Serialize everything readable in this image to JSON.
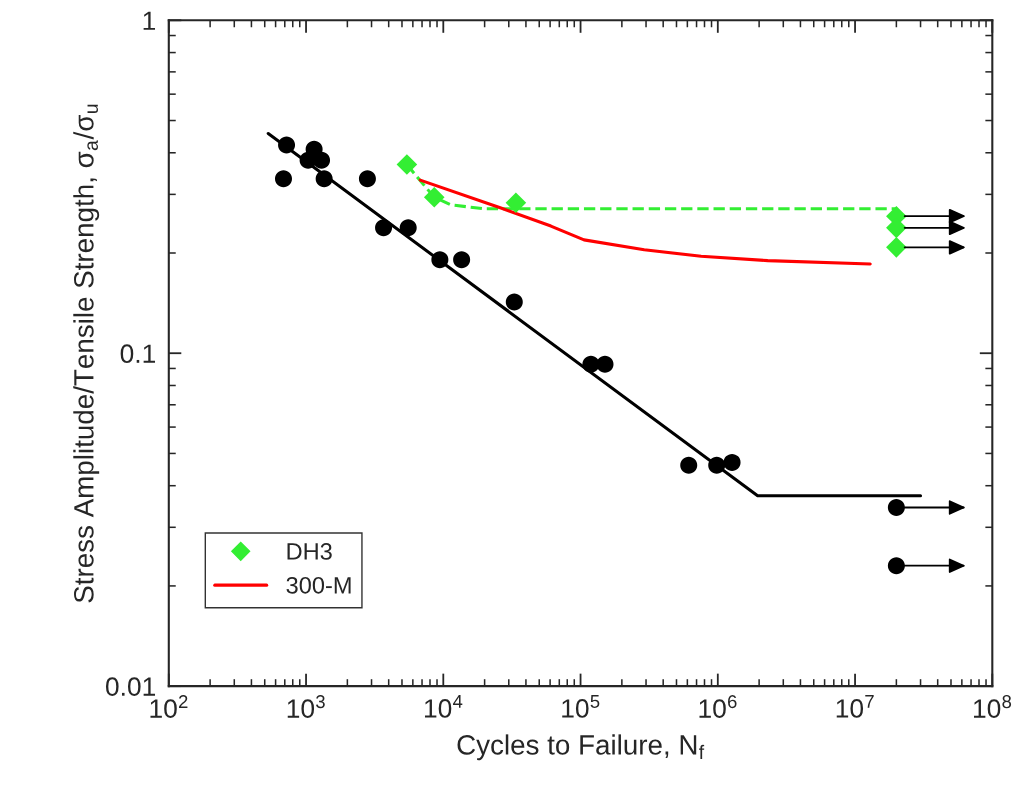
{
  "chart_data": {
    "type": "scatter",
    "xlabel": "Cycles to Failure, N$_{f}$",
    "ylabel": "Stress Amplitude/Tensile Strength, σ$_{a}$/σ$_{u}$",
    "log": "xy",
    "xlim": [
      100,
      100000000
    ],
    "xticks": [
      {
        "value": 100,
        "label": "10$^{2}$"
      },
      {
        "value": 1000,
        "label": "10$^{3}$"
      },
      {
        "value": 10000,
        "label": "10$^{4}$"
      },
      {
        "value": 100000,
        "label": "10$^{5}$"
      },
      {
        "value": 1000000,
        "label": "10$^{6}$"
      },
      {
        "value": 10000000,
        "label": "10$^{7}$"
      },
      {
        "value": 100000000,
        "label": "10$^{8}$"
      }
    ],
    "ylim": [
      0.01,
      1
    ],
    "yticks": [
      0.01,
      0.1,
      1
    ],
    "grid": false,
    "legend": "bottom left",
    "series": [
      {
        "type": "line",
        "color": "#000000",
        "line_style": "solid",
        "x": [
          530,
          1950000,
          30000000
        ],
        "values": [
          0.457,
          0.0373,
          0.0373
        ]
      },
      {
        "type": "line",
        "color": "#33ee33",
        "line_style": "dashed",
        "x": [
          5430,
          6500,
          8590,
          11350,
          19900,
          20000000
        ],
        "values": [
          0.369,
          0.337,
          0.294,
          0.279,
          0.2715,
          0.2715
        ]
      },
      {
        "marker": "circle",
        "color": "#000000",
        "x": [
          721,
          685,
          1145,
          1035,
          1297,
          1355,
          2800,
          3670,
          5550,
          9440,
          13600,
          32900,
          119000,
          150700,
          614000,
          982000,
          1270000,
          20000000,
          20000000
        ],
        "values": [
          0.422,
          0.334,
          0.41,
          0.38,
          0.38,
          0.334,
          0.334,
          0.238,
          0.238,
          0.191,
          0.191,
          0.1425,
          0.0927,
          0.0927,
          0.0461,
          0.0461,
          0.047,
          0.0344,
          0.023
        ]
      },
      {
        "marker": "diamond",
        "color": "#33ee33",
        "name": "DH3",
        "x": [
          5430,
          8590,
          33800,
          20000000,
          20000000,
          20000000
        ],
        "values": [
          0.369,
          0.294,
          0.283,
          0.258,
          0.238,
          0.208
        ]
      },
      {
        "type": "line",
        "color": "#ff0000",
        "line_style": "solid",
        "name": "300-M",
        "x": [
          6790,
          26300,
          60800,
          106000,
          291000,
          756000,
          2310000,
          12900000
        ],
        "values": [
          0.331,
          0.273,
          0.241,
          0.219,
          0.2045,
          0.1955,
          0.1897,
          0.1854
        ]
      }
    ]
  }
}
